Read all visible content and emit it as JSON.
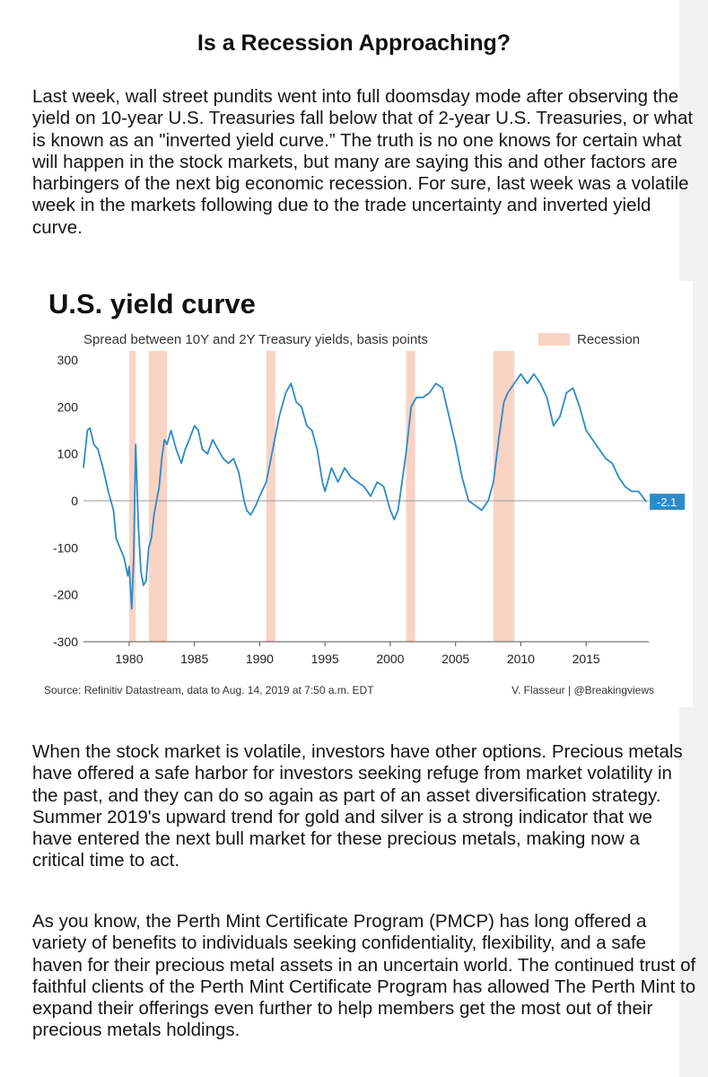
{
  "headline": "Is a Recession Approaching?",
  "paragraphs": [
    "Last week, wall street pundits went into full doomsday mode after observing the yield on 10-year U.S. Treasuries fall below that of 2-year U.S. Treasuries, or what is known as an \"inverted yield curve.” The truth is no one knows for certain what will happen in the stock markets, but many are saying this and other factors are harbingers of the next big economic recession. For sure, last week was a volatile week in the markets following due to the trade uncertainty and inverted yield curve.",
    "When the stock market is volatile, investors have other options. Precious metals have offered a safe harbor for investors seeking refuge from market volatility in the past, and they can do so again as part of an asset diversification strategy. Summer 2019's upward trend for gold and silver is a strong indicator that we have entered the next bull market for these precious metals, making now a critical time to act.",
    "As you know, the Perth Mint Certificate Program (PMCP) has long offered a variety of benefits to individuals seeking confidentiality, flexibility, and a safe haven for their precious metal assets in an uncertain world. The continued trust of faithful clients of the Perth Mint Certificate Program has allowed The Perth Mint to expand their offerings even further to help members get the most out of their precious metals holdings."
  ],
  "chart_data": {
    "type": "line",
    "title": "U.S. yield curve",
    "subtitle": "Spread between 10Y and 2Y Treasury yields, basis points",
    "legend": "Recession",
    "legend_position": "top-right",
    "source": "Source: Refinitiv Datastream, data to Aug. 14, 2019 at 7:50 a.m. EDT",
    "credit": "V. Flasseur | @Breakingviews",
    "last_value_label": "-2.1",
    "ylim": [
      -300,
      300
    ],
    "xlim": [
      1976.5,
      2019.8
    ],
    "y_ticks": [
      300,
      200,
      100,
      0,
      -100,
      -200,
      -300
    ],
    "x_ticks": [
      1980,
      1985,
      1990,
      1995,
      2000,
      2005,
      2010,
      2015
    ],
    "grid": false,
    "colors": {
      "line": "#2e8bc8",
      "recession": "#f9d3c4",
      "label_bg": "#2e8bc8",
      "zero_line": "#999999"
    },
    "recessions": [
      [
        1980.0,
        1980.5
      ],
      [
        1981.5,
        1982.9
      ],
      [
        1990.5,
        1991.2
      ],
      [
        2001.2,
        2001.9
      ],
      [
        2007.9,
        2009.5
      ]
    ],
    "series": [
      {
        "x": [
          1976.5,
          1976.8,
          1977.0,
          1977.3,
          1977.6,
          1978.0,
          1978.4,
          1978.8,
          1979.0,
          1979.3,
          1979.6,
          1979.9,
          1980.0,
          1980.2,
          1980.35,
          1980.5,
          1980.7,
          1980.9,
          1981.1,
          1981.3,
          1981.5,
          1981.7,
          1981.9,
          1982.1,
          1982.3,
          1982.5,
          1982.7,
          1982.9,
          1983.2,
          1983.6,
          1984.0,
          1984.3,
          1984.6,
          1985.0,
          1985.3,
          1985.6,
          1986.0,
          1986.4,
          1986.8,
          1987.2,
          1987.6,
          1988.0,
          1988.4,
          1988.8,
          1989.0,
          1989.3,
          1989.7,
          1990.0,
          1990.5,
          1991.0,
          1991.5,
          1992.0,
          1992.4,
          1992.8,
          1993.2,
          1993.6,
          1994.0,
          1994.4,
          1994.8,
          1995.0,
          1995.5,
          1996.0,
          1996.5,
          1997.0,
          1997.5,
          1998.0,
          1998.5,
          1999.0,
          1999.5,
          2000.0,
          2000.3,
          2000.6,
          2000.9,
          2001.2,
          2001.6,
          2002.0,
          2002.5,
          2003.0,
          2003.5,
          2004.0,
          2004.5,
          2005.0,
          2005.5,
          2006.0,
          2006.5,
          2007.0,
          2007.5,
          2007.9,
          2008.3,
          2008.7,
          2009.0,
          2009.5,
          2010.0,
          2010.5,
          2011.0,
          2011.5,
          2012.0,
          2012.5,
          2013.0,
          2013.5,
          2014.0,
          2014.5,
          2015.0,
          2015.5,
          2016.0,
          2016.5,
          2017.0,
          2017.5,
          2018.0,
          2018.5,
          2019.0,
          2019.3,
          2019.6
        ],
        "values": [
          70,
          150,
          155,
          120,
          110,
          70,
          20,
          -20,
          -80,
          -100,
          -120,
          -160,
          -140,
          -230,
          -120,
          120,
          -50,
          -150,
          -180,
          -170,
          -100,
          -80,
          -30,
          0,
          30,
          90,
          130,
          120,
          150,
          110,
          80,
          110,
          130,
          160,
          150,
          110,
          100,
          130,
          110,
          90,
          80,
          90,
          60,
          0,
          -20,
          -30,
          -10,
          10,
          40,
          110,
          180,
          230,
          250,
          210,
          200,
          160,
          150,
          110,
          40,
          20,
          70,
          40,
          70,
          50,
          40,
          30,
          10,
          40,
          30,
          -20,
          -40,
          -20,
          40,
          100,
          200,
          220,
          220,
          230,
          250,
          240,
          180,
          120,
          50,
          0,
          -10,
          -20,
          0,
          40,
          130,
          210,
          230,
          250,
          270,
          250,
          270,
          250,
          220,
          160,
          180,
          230,
          240,
          200,
          150,
          130,
          110,
          90,
          80,
          50,
          30,
          20,
          20,
          10,
          -2.1
        ]
      }
    ]
  }
}
